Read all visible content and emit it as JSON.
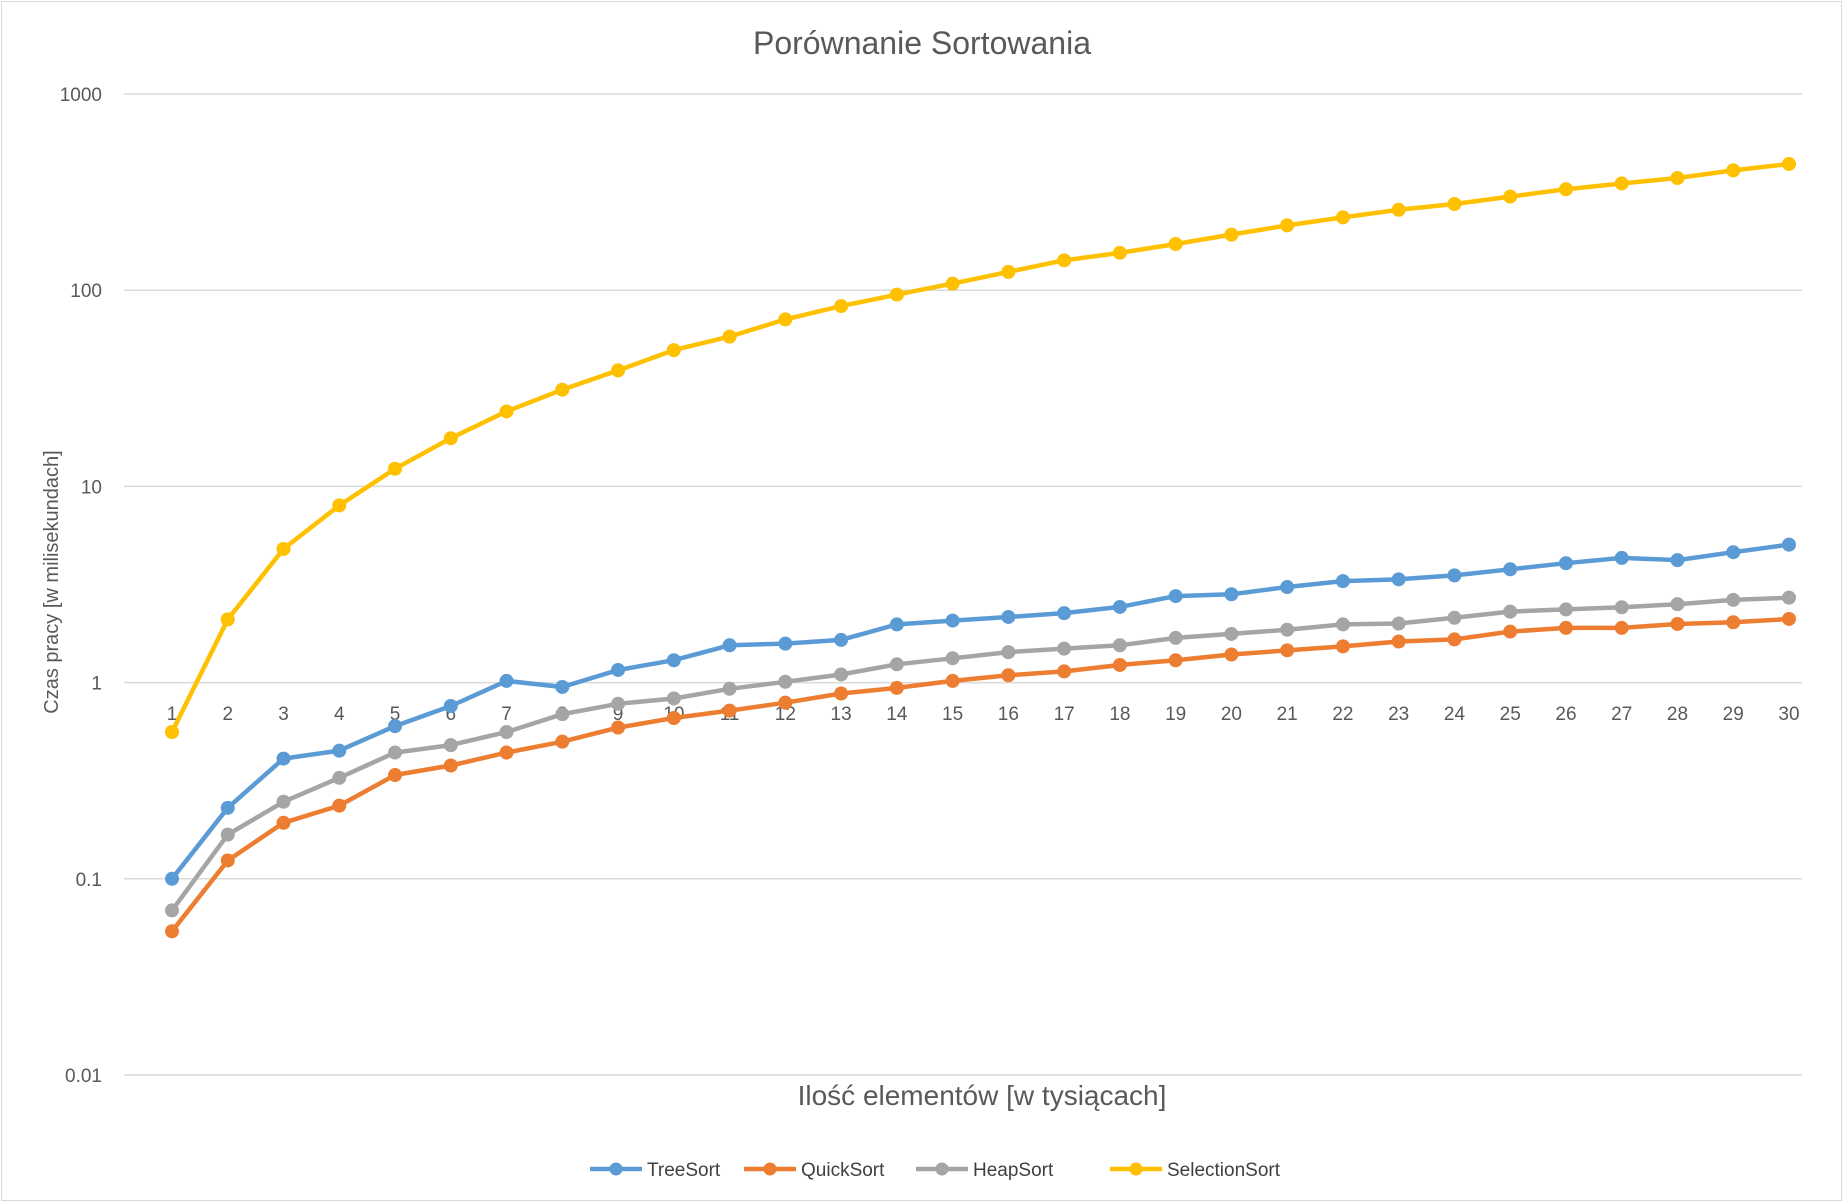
{
  "chart_data": {
    "type": "line",
    "title": "Porównanie Sortowania",
    "xlabel": "Ilość elementów [w tysiącach]",
    "ylabel": "Czas pracy [w milisekundach]",
    "yscale": "log",
    "ylim": [
      0.01,
      1000
    ],
    "yticks": [
      "0.01",
      "0.1",
      "1",
      "10",
      "100",
      "1000"
    ],
    "grid": true,
    "legend_position": "bottom",
    "categories": [
      "1",
      "2",
      "3",
      "4",
      "5",
      "6",
      "7",
      "8",
      "9",
      "10",
      "11",
      "12",
      "13",
      "14",
      "15",
      "16",
      "17",
      "18",
      "19",
      "20",
      "21",
      "22",
      "23",
      "24",
      "25",
      "26",
      "27",
      "28",
      "29",
      "30"
    ],
    "series": [
      {
        "name": "TreeSort",
        "color": "#5B9BD5",
        "values": [
          0.1,
          0.23,
          0.41,
          0.45,
          0.6,
          0.76,
          1.02,
          0.95,
          1.16,
          1.3,
          1.55,
          1.58,
          1.65,
          1.98,
          2.07,
          2.16,
          2.26,
          2.43,
          2.76,
          2.82,
          3.07,
          3.29,
          3.36,
          3.52,
          3.78,
          4.06,
          4.32,
          4.21,
          4.62,
          5.05
        ]
      },
      {
        "name": "QuickSort",
        "color": "#ED7D31",
        "values": [
          0.054,
          0.124,
          0.193,
          0.236,
          0.338,
          0.378,
          0.44,
          0.5,
          0.59,
          0.66,
          0.72,
          0.79,
          0.88,
          0.94,
          1.02,
          1.09,
          1.14,
          1.23,
          1.3,
          1.39,
          1.46,
          1.53,
          1.62,
          1.66,
          1.82,
          1.9,
          1.9,
          1.99,
          2.03,
          2.11
        ]
      },
      {
        "name": "HeapSort",
        "color": "#A5A5A5",
        "values": [
          0.069,
          0.168,
          0.247,
          0.327,
          0.44,
          0.48,
          0.56,
          0.69,
          0.78,
          0.83,
          0.93,
          1.01,
          1.1,
          1.24,
          1.33,
          1.43,
          1.49,
          1.55,
          1.69,
          1.77,
          1.86,
          1.98,
          2.0,
          2.14,
          2.3,
          2.36,
          2.42,
          2.51,
          2.64,
          2.71
        ]
      },
      {
        "name": "SelectionSort",
        "color": "#FFC000",
        "values": [
          0.56,
          2.1,
          4.8,
          8.0,
          12.3,
          17.6,
          24.1,
          31.1,
          39.0,
          49.5,
          58.0,
          71.0,
          83.0,
          95.0,
          108.0,
          124.0,
          142.0,
          155.0,
          172.0,
          192.0,
          214.0,
          235.0,
          257.0,
          275.0,
          300.0,
          327.0,
          350.0,
          373.0,
          408.0,
          440.0
        ]
      }
    ]
  }
}
